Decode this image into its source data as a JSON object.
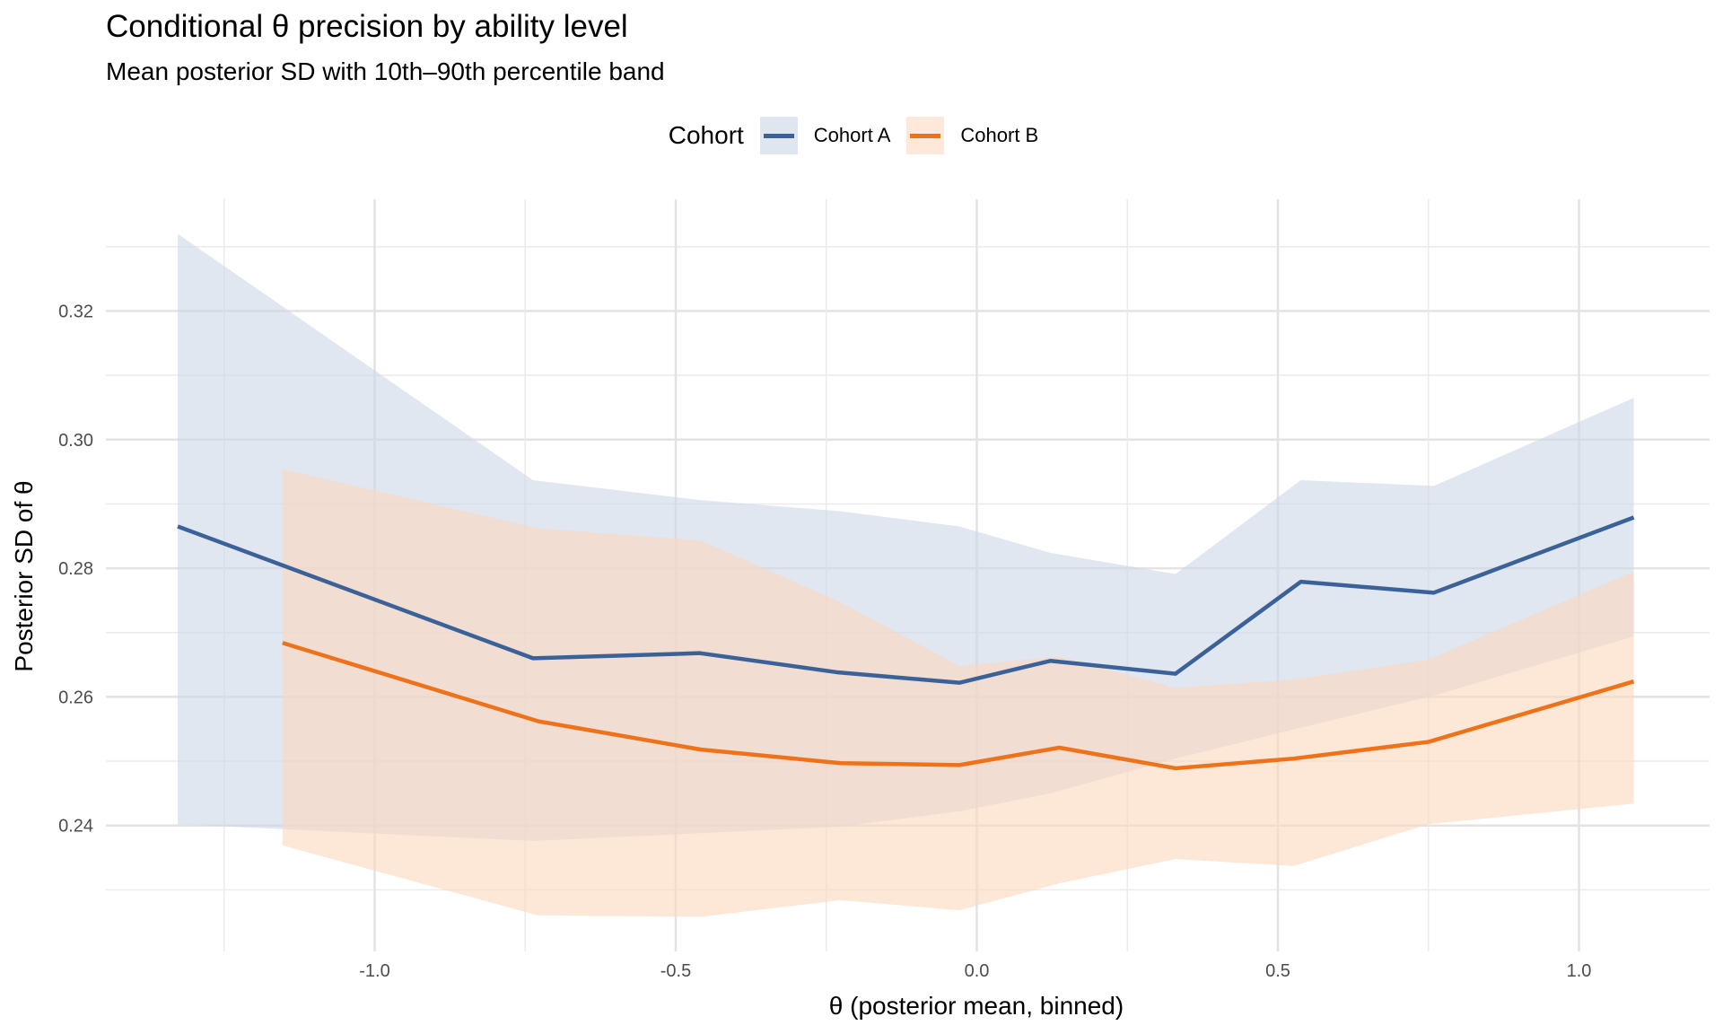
{
  "chart_data": {
    "type": "line",
    "title": "Conditional θ precision by ability level",
    "subtitle": "Mean posterior SD with 10th–90th percentile band",
    "xlabel": "θ (posterior mean, binned)",
    "ylabel": "Posterior SD of θ",
    "xlim": [
      -1.45,
      1.22
    ],
    "ylim": [
      0.219,
      0.337
    ],
    "x_ticks": [
      -1.0,
      -0.5,
      0.0,
      0.5,
      1.0
    ],
    "x_tick_labels": [
      "-1.0",
      "-0.5",
      "0.0",
      "0.5",
      "1.0"
    ],
    "y_ticks": [
      0.24,
      0.26,
      0.28,
      0.3,
      0.32
    ],
    "y_tick_labels": [
      "0.24",
      "0.26",
      "0.28",
      "0.30",
      "0.32"
    ],
    "grid": true,
    "legend": {
      "title": "Cohort",
      "position": "top"
    },
    "series": [
      {
        "name": "Cohort A",
        "color": "#3b6298",
        "band_color": "#cdd7e6",
        "x": [
          -1.327,
          -0.737,
          -0.46,
          -0.23,
          -0.029,
          0.122,
          0.33,
          0.538,
          0.759,
          1.091
        ],
        "mean": [
          0.2865,
          0.266,
          0.2668,
          0.2638,
          0.2622,
          0.2656,
          0.2636,
          0.2779,
          0.2762,
          0.2879
        ],
        "p10": [
          0.2402,
          0.2376,
          0.2388,
          0.2398,
          0.2422,
          0.245,
          0.2504,
          0.2552,
          0.2602,
          0.2694
        ],
        "p90": [
          0.332,
          0.2937,
          0.2906,
          0.2889,
          0.2865,
          0.2824,
          0.2791,
          0.2937,
          0.2928,
          0.3065
        ]
      },
      {
        "name": "Cohort B",
        "color": "#ee7219",
        "band_color": "#fbd7bd",
        "x": [
          -1.153,
          -0.728,
          -0.458,
          -0.226,
          -0.029,
          0.137,
          0.33,
          0.526,
          0.75,
          1.091
        ],
        "mean": [
          0.2684,
          0.2562,
          0.2518,
          0.2497,
          0.2494,
          0.2521,
          0.2489,
          0.2504,
          0.253,
          0.2624
        ],
        "p10": [
          0.2369,
          0.226,
          0.2258,
          0.2284,
          0.2268,
          0.231,
          0.2348,
          0.2337,
          0.2402,
          0.2434
        ],
        "p90": [
          0.2954,
          0.2862,
          0.2843,
          0.2747,
          0.2648,
          0.2663,
          0.2614,
          0.2627,
          0.2658,
          0.2795
        ]
      }
    ]
  }
}
